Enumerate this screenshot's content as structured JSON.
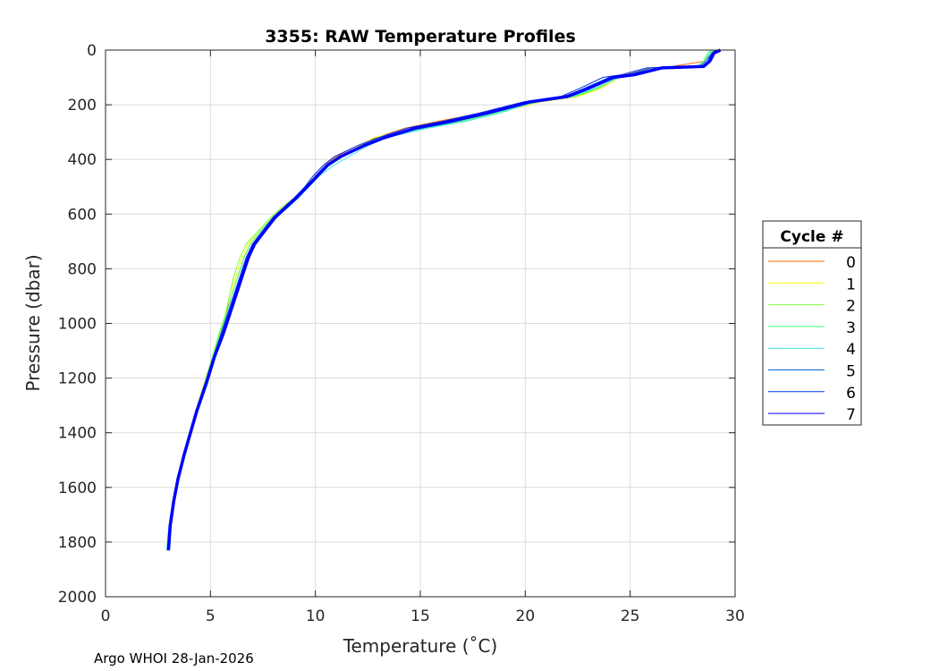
{
  "chart_data": {
    "type": "line",
    "title": "3355: RAW Temperature Profiles",
    "xlabel": "Temperature (˚C)",
    "ylabel": "Pressure (dbar)",
    "xlim": [
      0,
      30
    ],
    "ylim": [
      0,
      2000
    ],
    "y_reversed": true,
    "grid": true,
    "xticks": [
      "0",
      "5",
      "10",
      "15",
      "20",
      "25",
      "30"
    ],
    "yticks": [
      "0",
      "200",
      "400",
      "600",
      "800",
      "1000",
      "1200",
      "1400",
      "1600",
      "1800",
      "2000"
    ],
    "legend": {
      "title": "Cycle #",
      "placement": "outside-right"
    },
    "pressure": [
      0,
      10,
      40,
      60,
      65,
      90,
      100,
      140,
      170,
      190,
      230,
      260,
      285,
      320,
      350,
      390,
      420,
      460,
      500,
      540,
      575,
      610,
      660,
      710,
      760,
      830,
      900,
      970,
      1040,
      1120,
      1220,
      1320,
      1400,
      1480,
      1570,
      1650,
      1740,
      1830
    ],
    "series": [
      {
        "name": "0",
        "color": "#ff6a00",
        "temps": [
          29.2,
          28.9,
          28.6,
          27.0,
          26.0,
          24.8,
          24.0,
          22.9,
          21.8,
          20.0,
          17.9,
          15.9,
          14.3,
          12.9,
          12.0,
          11.0,
          10.4,
          9.9,
          9.5,
          9.0,
          8.5,
          8.0,
          7.4,
          6.9,
          6.6,
          6.3,
          6.0,
          5.7,
          5.45,
          5.1,
          4.7,
          4.3,
          4.0,
          3.7,
          3.42,
          3.22,
          3.05,
          2.98
        ]
      },
      {
        "name": "1",
        "color": "#ffff00",
        "temps": [
          29.1,
          28.8,
          28.5,
          28.2,
          26.2,
          25.0,
          24.5,
          23.6,
          22.5,
          20.7,
          18.6,
          16.9,
          14.9,
          12.8,
          12.1,
          11.3,
          10.7,
          10.0,
          9.5,
          9.0,
          8.4,
          7.9,
          7.3,
          6.8,
          6.5,
          6.2,
          5.9,
          5.7,
          5.4,
          5.1,
          4.7,
          4.3,
          4.0,
          3.7,
          3.4,
          3.2,
          3.05,
          2.98
        ]
      },
      {
        "name": "2",
        "color": "#7fff3f",
        "temps": [
          29.0,
          28.8,
          28.5,
          28.2,
          26.3,
          25.1,
          24.4,
          23.5,
          22.4,
          20.6,
          18.5,
          16.8,
          15.0,
          13.0,
          12.2,
          11.2,
          10.6,
          10.0,
          9.5,
          9.0,
          8.4,
          7.9,
          7.3,
          6.7,
          6.4,
          6.1,
          5.9,
          5.7,
          5.4,
          5.1,
          4.7,
          4.3,
          4.0,
          3.7,
          3.4,
          3.2,
          3.05,
          2.98
        ]
      },
      {
        "name": "3",
        "color": "#3fff7f",
        "temps": [
          28.9,
          28.7,
          28.5,
          28.2,
          26.4,
          25.2,
          24.4,
          23.4,
          22.3,
          20.5,
          18.6,
          17.0,
          15.2,
          13.2,
          12.3,
          11.3,
          10.7,
          10.1,
          9.6,
          9.1,
          8.5,
          8.0,
          7.4,
          6.9,
          6.6,
          6.3,
          6.0,
          5.75,
          5.45,
          5.1,
          4.75,
          4.3,
          4.0,
          3.72,
          3.42,
          3.22,
          3.05,
          2.97
        ]
      },
      {
        "name": "4",
        "color": "#3fe6e6",
        "temps": [
          29.0,
          28.8,
          28.6,
          28.3,
          26.3,
          25.3,
          24.5,
          23.3,
          22.2,
          20.4,
          18.8,
          17.2,
          15.4,
          13.4,
          12.5,
          11.6,
          10.9,
          10.2,
          9.7,
          9.2,
          8.7,
          8.2,
          7.5,
          7.0,
          6.7,
          6.4,
          6.1,
          5.8,
          5.5,
          5.15,
          4.75,
          4.35,
          4.02,
          3.72,
          3.42,
          3.2,
          3.02,
          2.9
        ]
      },
      {
        "name": "5",
        "color": "#0066e0",
        "temps": [
          29.1,
          28.9,
          28.6,
          28.3,
          26.0,
          24.9,
          24.0,
          22.8,
          21.9,
          20.1,
          18.1,
          16.4,
          14.7,
          13.2,
          12.2,
          11.1,
          10.5,
          10.0,
          9.6,
          9.1,
          8.6,
          8.1,
          7.5,
          7.0,
          6.7,
          6.4,
          6.1,
          5.8,
          5.5,
          5.15,
          4.75,
          4.3,
          4.02,
          3.72,
          3.42,
          3.22,
          3.05,
          2.98
        ]
      },
      {
        "name": "6",
        "color": "#0033ee",
        "temps": [
          29.2,
          28.9,
          28.7,
          28.4,
          25.8,
          24.6,
          23.7,
          22.6,
          21.7,
          19.9,
          17.8,
          16.1,
          14.4,
          13.0,
          12.0,
          10.9,
          10.4,
          9.9,
          9.5,
          9.0,
          8.5,
          8.0,
          7.5,
          7.0,
          6.7,
          6.4,
          6.1,
          5.8,
          5.5,
          5.15,
          4.75,
          4.3,
          4.0,
          3.7,
          3.42,
          3.22,
          3.05,
          2.98
        ]
      },
      {
        "name": "7",
        "color": "#0000ff",
        "temps": [
          29.3,
          29.0,
          28.8,
          28.5,
          26.5,
          25.2,
          24.2,
          23.0,
          22.0,
          20.2,
          18.2,
          16.5,
          14.8,
          13.3,
          12.3,
          11.2,
          10.6,
          10.1,
          9.6,
          9.1,
          8.6,
          8.1,
          7.6,
          7.1,
          6.8,
          6.5,
          6.2,
          5.9,
          5.6,
          5.2,
          4.8,
          4.35,
          4.05,
          3.75,
          3.45,
          3.25,
          3.08,
          3.0
        ]
      }
    ]
  },
  "footer": "Argo WHOI 28-Jan-2026"
}
